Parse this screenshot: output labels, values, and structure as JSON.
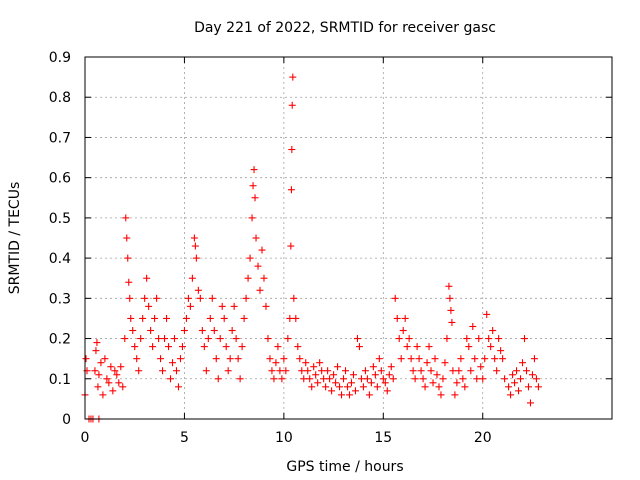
{
  "chart_data": {
    "type": "scatter",
    "title": "Day 221 of 2022, SRMTID for receiver gasc",
    "xlabel": "GPS time / hours",
    "ylabel": "SRMTID / TECUs",
    "xlim": [
      0,
      26.5
    ],
    "ylim": [
      0,
      0.9
    ],
    "x_ticks": [
      0,
      5,
      10,
      15,
      20
    ],
    "x_tick_labels": [
      "0",
      "5",
      "10",
      "15",
      "20"
    ],
    "y_ticks": [
      0,
      0.1,
      0.2,
      0.3,
      0.4,
      0.5,
      0.6,
      0.7,
      0.8,
      0.9
    ],
    "y_tick_labels": [
      "0",
      "0.1",
      "0.2",
      "0.3",
      "0.4",
      "0.5",
      "0.6",
      "0.7",
      "0.8",
      "0.9"
    ],
    "grid": true,
    "marker": "+",
    "color": "#ff0000",
    "series": [
      {
        "name": "SRMTID",
        "points": [
          [
            0.0,
            0.06
          ],
          [
            0.05,
            0.15
          ],
          [
            0.1,
            0.12
          ],
          [
            0.2,
            0.0
          ],
          [
            0.3,
            0.0
          ],
          [
            0.4,
            0.0
          ],
          [
            0.7,
            0.0
          ],
          [
            0.5,
            0.12
          ],
          [
            0.55,
            0.17
          ],
          [
            0.6,
            0.19
          ],
          [
            0.65,
            0.08
          ],
          [
            0.7,
            0.11
          ],
          [
            0.8,
            0.14
          ],
          [
            0.9,
            0.06
          ],
          [
            1.0,
            0.15
          ],
          [
            1.1,
            0.1
          ],
          [
            1.2,
            0.09
          ],
          [
            1.3,
            0.13
          ],
          [
            1.4,
            0.07
          ],
          [
            1.5,
            0.12
          ],
          [
            1.6,
            0.11
          ],
          [
            1.7,
            0.09
          ],
          [
            1.8,
            0.13
          ],
          [
            1.9,
            0.08
          ],
          [
            2.0,
            0.2
          ],
          [
            2.05,
            0.5
          ],
          [
            2.1,
            0.45
          ],
          [
            2.15,
            0.4
          ],
          [
            2.2,
            0.34
          ],
          [
            2.25,
            0.3
          ],
          [
            2.3,
            0.25
          ],
          [
            2.4,
            0.22
          ],
          [
            2.5,
            0.18
          ],
          [
            2.6,
            0.15
          ],
          [
            2.7,
            0.12
          ],
          [
            2.8,
            0.2
          ],
          [
            2.9,
            0.25
          ],
          [
            3.0,
            0.3
          ],
          [
            3.1,
            0.35
          ],
          [
            3.2,
            0.28
          ],
          [
            3.3,
            0.22
          ],
          [
            3.4,
            0.18
          ],
          [
            3.5,
            0.25
          ],
          [
            3.6,
            0.3
          ],
          [
            3.7,
            0.2
          ],
          [
            3.8,
            0.15
          ],
          [
            3.9,
            0.12
          ],
          [
            4.0,
            0.2
          ],
          [
            4.1,
            0.25
          ],
          [
            4.2,
            0.18
          ],
          [
            4.3,
            0.1
          ],
          [
            4.4,
            0.14
          ],
          [
            4.5,
            0.2
          ],
          [
            4.6,
            0.12
          ],
          [
            4.7,
            0.08
          ],
          [
            4.8,
            0.15
          ],
          [
            4.9,
            0.18
          ],
          [
            5.0,
            0.22
          ],
          [
            5.1,
            0.25
          ],
          [
            5.2,
            0.3
          ],
          [
            5.3,
            0.28
          ],
          [
            5.4,
            0.35
          ],
          [
            5.5,
            0.45
          ],
          [
            5.55,
            0.43
          ],
          [
            5.6,
            0.4
          ],
          [
            5.7,
            0.32
          ],
          [
            5.8,
            0.3
          ],
          [
            5.9,
            0.22
          ],
          [
            6.0,
            0.18
          ],
          [
            6.1,
            0.12
          ],
          [
            6.2,
            0.2
          ],
          [
            6.3,
            0.25
          ],
          [
            6.4,
            0.3
          ],
          [
            6.5,
            0.22
          ],
          [
            6.6,
            0.15
          ],
          [
            6.7,
            0.1
          ],
          [
            6.8,
            0.2
          ],
          [
            6.9,
            0.28
          ],
          [
            7.0,
            0.25
          ],
          [
            7.1,
            0.18
          ],
          [
            7.2,
            0.12
          ],
          [
            7.3,
            0.15
          ],
          [
            7.4,
            0.22
          ],
          [
            7.5,
            0.28
          ],
          [
            7.6,
            0.2
          ],
          [
            7.7,
            0.15
          ],
          [
            7.8,
            0.1
          ],
          [
            7.9,
            0.18
          ],
          [
            8.0,
            0.25
          ],
          [
            8.1,
            0.3
          ],
          [
            8.2,
            0.35
          ],
          [
            8.3,
            0.4
          ],
          [
            8.4,
            0.5
          ],
          [
            8.45,
            0.58
          ],
          [
            8.5,
            0.62
          ],
          [
            8.55,
            0.55
          ],
          [
            8.6,
            0.45
          ],
          [
            8.7,
            0.38
          ],
          [
            8.8,
            0.32
          ],
          [
            8.9,
            0.42
          ],
          [
            9.0,
            0.35
          ],
          [
            9.1,
            0.28
          ],
          [
            9.2,
            0.2
          ],
          [
            9.3,
            0.15
          ],
          [
            9.4,
            0.12
          ],
          [
            9.5,
            0.1
          ],
          [
            9.6,
            0.14
          ],
          [
            9.7,
            0.18
          ],
          [
            9.8,
            0.12
          ],
          [
            9.9,
            0.1
          ],
          [
            10.0,
            0.15
          ],
          [
            10.1,
            0.12
          ],
          [
            10.2,
            0.2
          ],
          [
            10.3,
            0.25
          ],
          [
            10.35,
            0.43
          ],
          [
            10.38,
            0.57
          ],
          [
            10.4,
            0.67
          ],
          [
            10.42,
            0.78
          ],
          [
            10.45,
            0.85
          ],
          [
            10.5,
            0.3
          ],
          [
            10.6,
            0.25
          ],
          [
            10.7,
            0.18
          ],
          [
            10.8,
            0.15
          ],
          [
            10.9,
            0.12
          ],
          [
            11.0,
            0.1
          ],
          [
            11.1,
            0.14
          ],
          [
            11.2,
            0.12
          ],
          [
            11.3,
            0.1
          ],
          [
            11.4,
            0.08
          ],
          [
            11.5,
            0.13
          ],
          [
            11.6,
            0.11
          ],
          [
            11.7,
            0.09
          ],
          [
            11.8,
            0.14
          ],
          [
            11.9,
            0.12
          ],
          [
            12.0,
            0.1
          ],
          [
            12.1,
            0.08
          ],
          [
            12.2,
            0.12
          ],
          [
            12.3,
            0.1
          ],
          [
            12.4,
            0.07
          ],
          [
            12.5,
            0.11
          ],
          [
            12.6,
            0.09
          ],
          [
            12.7,
            0.13
          ],
          [
            12.8,
            0.08
          ],
          [
            12.9,
            0.06
          ],
          [
            13.0,
            0.1
          ],
          [
            13.1,
            0.12
          ],
          [
            13.2,
            0.08
          ],
          [
            13.3,
            0.06
          ],
          [
            13.4,
            0.09
          ],
          [
            13.5,
            0.11
          ],
          [
            13.6,
            0.07
          ],
          [
            13.7,
            0.2
          ],
          [
            13.8,
            0.18
          ],
          [
            13.9,
            0.1
          ],
          [
            14.0,
            0.08
          ],
          [
            14.1,
            0.12
          ],
          [
            14.2,
            0.1
          ],
          [
            14.3,
            0.06
          ],
          [
            14.4,
            0.09
          ],
          [
            14.5,
            0.13
          ],
          [
            14.6,
            0.11
          ],
          [
            14.7,
            0.08
          ],
          [
            14.8,
            0.15
          ],
          [
            14.9,
            0.12
          ],
          [
            15.0,
            0.1
          ],
          [
            15.1,
            0.09
          ],
          [
            15.2,
            0.07
          ],
          [
            15.3,
            0.11
          ],
          [
            15.4,
            0.13
          ],
          [
            15.5,
            0.1
          ],
          [
            15.6,
            0.3
          ],
          [
            15.7,
            0.25
          ],
          [
            15.8,
            0.2
          ],
          [
            15.9,
            0.15
          ],
          [
            16.0,
            0.22
          ],
          [
            16.1,
            0.25
          ],
          [
            16.2,
            0.18
          ],
          [
            16.3,
            0.2
          ],
          [
            16.4,
            0.15
          ],
          [
            16.5,
            0.12
          ],
          [
            16.6,
            0.1
          ],
          [
            16.7,
            0.18
          ],
          [
            16.8,
            0.15
          ],
          [
            16.9,
            0.12
          ],
          [
            17.0,
            0.1
          ],
          [
            17.1,
            0.08
          ],
          [
            17.2,
            0.14
          ],
          [
            17.3,
            0.18
          ],
          [
            17.4,
            0.12
          ],
          [
            17.5,
            0.09
          ],
          [
            17.6,
            0.15
          ],
          [
            17.7,
            0.11
          ],
          [
            17.8,
            0.08
          ],
          [
            17.9,
            0.06
          ],
          [
            18.0,
            0.1
          ],
          [
            18.1,
            0.14
          ],
          [
            18.2,
            0.2
          ],
          [
            18.3,
            0.33
          ],
          [
            18.35,
            0.3
          ],
          [
            18.4,
            0.27
          ],
          [
            18.45,
            0.24
          ],
          [
            18.5,
            0.12
          ],
          [
            18.6,
            0.06
          ],
          [
            18.7,
            0.09
          ],
          [
            18.8,
            0.12
          ],
          [
            18.9,
            0.15
          ],
          [
            19.0,
            0.1
          ],
          [
            19.1,
            0.08
          ],
          [
            19.2,
            0.2
          ],
          [
            19.3,
            0.18
          ],
          [
            19.4,
            0.12
          ],
          [
            19.5,
            0.23
          ],
          [
            19.6,
            0.15
          ],
          [
            19.7,
            0.1
          ],
          [
            19.8,
            0.2
          ],
          [
            19.9,
            0.13
          ],
          [
            20.0,
            0.1
          ],
          [
            20.1,
            0.15
          ],
          [
            20.2,
            0.26
          ],
          [
            20.3,
            0.2
          ],
          [
            20.4,
            0.18
          ],
          [
            20.5,
            0.22
          ],
          [
            20.6,
            0.15
          ],
          [
            20.7,
            0.12
          ],
          [
            20.8,
            0.2
          ],
          [
            20.9,
            0.17
          ],
          [
            21.0,
            0.15
          ],
          [
            21.1,
            0.1
          ],
          [
            21.3,
            0.08
          ],
          [
            21.4,
            0.06
          ],
          [
            21.5,
            0.11
          ],
          [
            21.6,
            0.09
          ],
          [
            21.7,
            0.12
          ],
          [
            21.8,
            0.07
          ],
          [
            21.9,
            0.1
          ],
          [
            22.0,
            0.14
          ],
          [
            22.1,
            0.2
          ],
          [
            22.2,
            0.12
          ],
          [
            22.3,
            0.08
          ],
          [
            22.4,
            0.04
          ],
          [
            22.5,
            0.11
          ],
          [
            22.6,
            0.15
          ],
          [
            22.7,
            0.1
          ],
          [
            22.8,
            0.08
          ]
        ]
      }
    ]
  }
}
